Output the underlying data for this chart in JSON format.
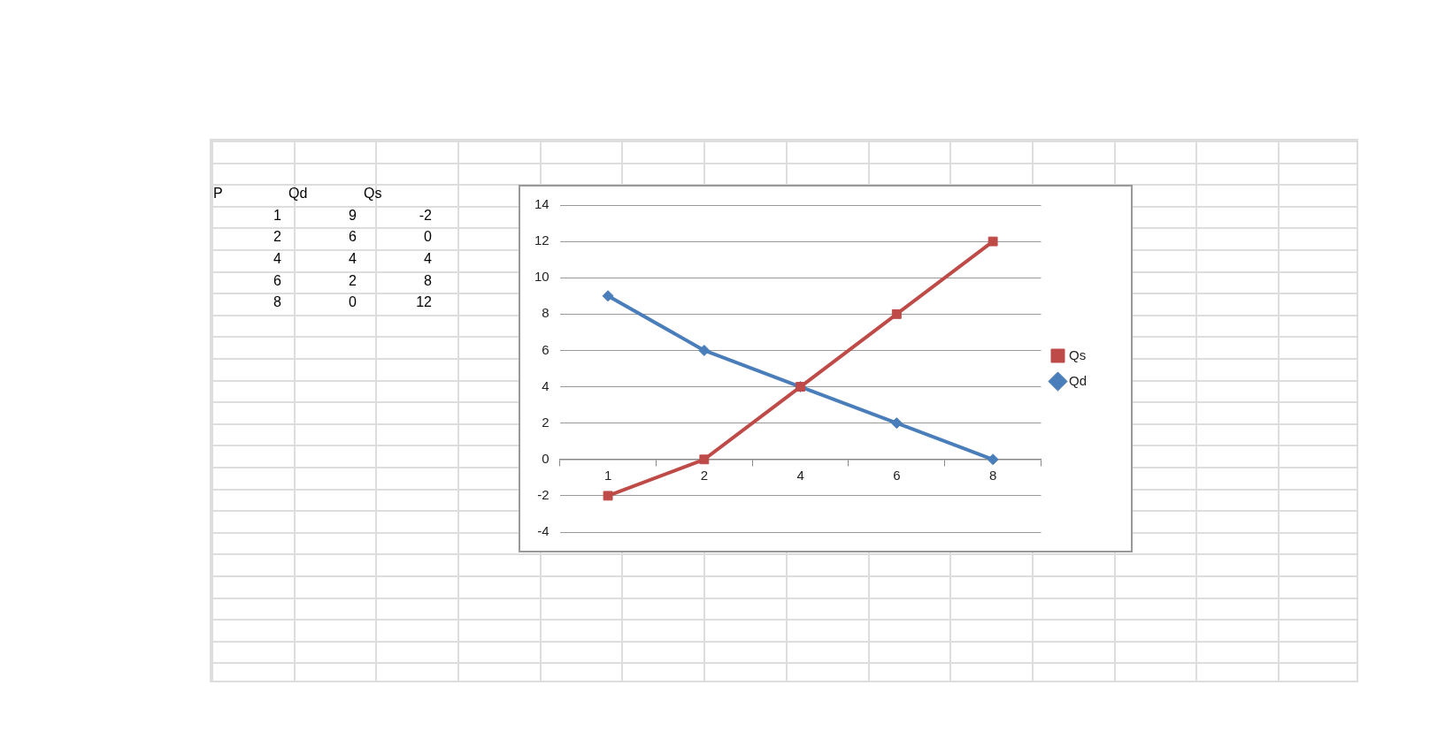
{
  "chart_data": {
    "type": "line",
    "categories": [
      "1",
      "2",
      "4",
      "6",
      "8"
    ],
    "annotations": [
      "P",
      "Qd",
      "Qs",
      "1",
      "9",
      "-2",
      "2",
      "6",
      "0",
      "4",
      "4",
      "4",
      "6",
      "2",
      "8",
      "8",
      "0",
      "12"
    ],
    "series": [
      {
        "name": "Qd",
        "color": "#4a7ebb",
        "marker": "diamond",
        "values": [
          9,
          6,
          4,
          2,
          0
        ]
      },
      {
        "name": "Qs",
        "color": "#be4b48",
        "marker": "square",
        "values": [
          -2,
          0,
          4,
          8,
          12
        ]
      }
    ],
    "ylim": [
      -4,
      14
    ],
    "yticks": [
      -4,
      -2,
      0,
      2,
      4,
      6,
      8,
      10,
      12,
      14
    ],
    "grid": "y",
    "legend": "right"
  }
}
